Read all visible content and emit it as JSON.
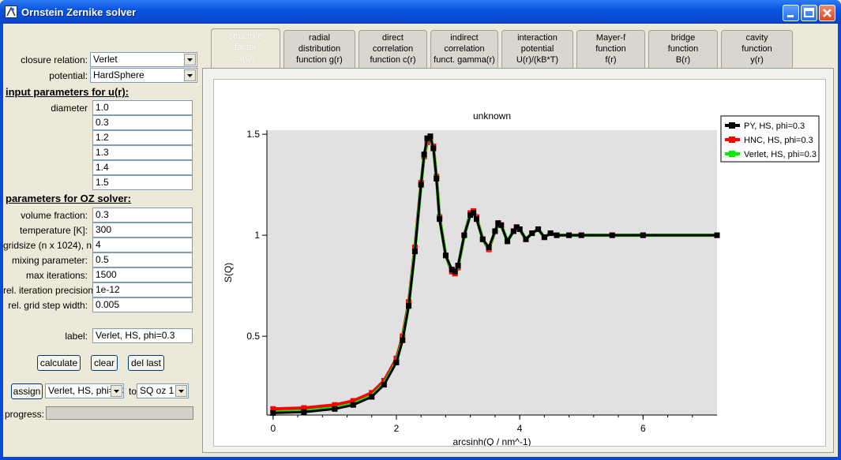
{
  "window": {
    "title": "Ornstein Zernike solver"
  },
  "form": {
    "closure_label": "closure relation:",
    "closure_value": "Verlet",
    "potential_label": "potential:",
    "potential_value": "HardSphere",
    "section_u": "input parameters for u(r):",
    "diameter_label": "diameter",
    "u_params": [
      "1.0",
      "0.3",
      "1.2",
      "1.3",
      "1.4",
      "1.5"
    ],
    "section_oz": "parameters for OZ solver:",
    "oz_params": [
      {
        "label": "volume fraction:",
        "value": "0.3"
      },
      {
        "label": "temperature [K]:",
        "value": "300"
      },
      {
        "label": "gridsize (n x 1024), n:",
        "value": "4"
      },
      {
        "label": "mixing parameter:",
        "value": "0.5"
      },
      {
        "label": "max iterations:",
        "value": "1500"
      },
      {
        "label": "rel. iteration precision:",
        "value": "1e-12"
      },
      {
        "label": "rel. grid step width:",
        "value": "0.005"
      }
    ],
    "label_label": "label:",
    "label_value": "Verlet, HS, phi=0.3",
    "calculate_label": "calculate",
    "clear_label": "clear",
    "del_last_label": "del last",
    "assign_label": "assign",
    "assign_source_value": "Verlet, HS, phi=0.3",
    "to_label": "to",
    "assign_target_value": "SQ oz 1",
    "progress_label": "progress:",
    "progress_value": 0
  },
  "tabs": [
    {
      "lines": [
        "structure",
        "factor",
        "S(Q)"
      ],
      "active": true
    },
    {
      "lines": [
        "radial",
        "distribution",
        "function g(r)"
      ],
      "active": false
    },
    {
      "lines": [
        "direct",
        "correlation",
        "function c(r)"
      ],
      "active": false
    },
    {
      "lines": [
        "indirect",
        "correlation",
        "funct. gamma(r)"
      ],
      "active": false
    },
    {
      "lines": [
        "interaction",
        "potential",
        "U(r)/(kB*T)"
      ],
      "active": false
    },
    {
      "lines": [
        "Mayer-f",
        "function",
        "f(r)"
      ],
      "active": false
    },
    {
      "lines": [
        "bridge",
        "function",
        "B(r)"
      ],
      "active": false
    },
    {
      "lines": [
        "cavity",
        "function",
        "y(r)"
      ],
      "active": false
    }
  ],
  "chart_data": {
    "type": "line",
    "title": "unknown",
    "xlabel": "arcsinh(Q / nm^-1)",
    "ylabel": "S(Q)",
    "xlim": [
      -0.1,
      7.2
    ],
    "ylim": [
      0.11,
      1.52
    ],
    "xticks": [
      "0",
      "2",
      "4",
      "6"
    ],
    "xtick_values": [
      0,
      2,
      4,
      6
    ],
    "yticks": [
      "0.5",
      "1",
      "1.5"
    ],
    "ytick_values": [
      0.5,
      1,
      1.5
    ],
    "grid": false,
    "legend_position": "right-top",
    "series": [
      {
        "name": "PY, HS, phi=0.3",
        "color": "#000000",
        "x": [
          0,
          0.5,
          1.0,
          1.3,
          1.6,
          1.8,
          2.0,
          2.1,
          2.2,
          2.3,
          2.4,
          2.45,
          2.5,
          2.55,
          2.6,
          2.65,
          2.7,
          2.8,
          2.9,
          2.95,
          3.0,
          3.1,
          3.2,
          3.25,
          3.3,
          3.4,
          3.5,
          3.6,
          3.65,
          3.7,
          3.8,
          3.9,
          3.95,
          4.0,
          4.1,
          4.2,
          4.3,
          4.4,
          4.5,
          4.6,
          4.8,
          5.0,
          5.5,
          6.0,
          7.2
        ],
        "y": [
          0.12,
          0.125,
          0.14,
          0.16,
          0.2,
          0.26,
          0.37,
          0.48,
          0.65,
          0.92,
          1.25,
          1.4,
          1.48,
          1.49,
          1.43,
          1.28,
          1.08,
          0.9,
          0.83,
          0.82,
          0.85,
          1.0,
          1.1,
          1.11,
          1.08,
          0.98,
          0.94,
          1.02,
          1.06,
          1.05,
          0.97,
          1.02,
          1.04,
          1.03,
          0.98,
          1.01,
          1.03,
          0.99,
          1.01,
          1.0,
          1.0,
          1.0,
          1.0,
          1.0,
          1.0
        ]
      },
      {
        "name": "HNC, HS, phi=0.3",
        "color": "#ff0000",
        "x": [
          0,
          0.5,
          1.0,
          1.3,
          1.6,
          1.8,
          2.0,
          2.1,
          2.2,
          2.3,
          2.4,
          2.45,
          2.5,
          2.55,
          2.6,
          2.65,
          2.7,
          2.8,
          2.9,
          2.95,
          3.0,
          3.1,
          3.2,
          3.25,
          3.3,
          3.4,
          3.5,
          3.6,
          3.65,
          3.7,
          3.8,
          3.9,
          3.95,
          4.0,
          4.1,
          4.2,
          4.3,
          4.4,
          4.5,
          4.6,
          4.8,
          5.0,
          5.5,
          6.0,
          7.2
        ],
        "y": [
          0.14,
          0.145,
          0.16,
          0.18,
          0.22,
          0.28,
          0.39,
          0.5,
          0.67,
          0.94,
          1.26,
          1.39,
          1.46,
          1.48,
          1.44,
          1.29,
          1.09,
          0.9,
          0.82,
          0.81,
          0.84,
          1.0,
          1.11,
          1.12,
          1.09,
          0.98,
          0.93,
          1.02,
          1.06,
          1.05,
          0.97,
          1.02,
          1.04,
          1.03,
          0.98,
          1.01,
          1.03,
          0.99,
          1.01,
          1.0,
          1.0,
          1.0,
          1.0,
          1.0,
          1.0
        ]
      },
      {
        "name": "Verlet, HS, phi=0.3",
        "color": "#00ee00",
        "x": [
          0,
          0.5,
          1.0,
          1.3,
          1.6,
          1.8,
          2.0,
          2.1,
          2.2,
          2.3,
          2.4,
          2.45,
          2.5,
          2.55,
          2.6,
          2.65,
          2.7,
          2.8,
          2.9,
          2.95,
          3.0,
          3.1,
          3.2,
          3.25,
          3.3,
          3.4,
          3.5,
          3.6,
          3.65,
          3.7,
          3.8,
          3.9,
          3.95,
          4.0,
          4.1,
          4.2,
          4.3,
          4.4,
          4.5,
          4.6,
          4.8,
          5.0,
          5.5,
          6.0,
          7.2
        ],
        "y": [
          0.125,
          0.13,
          0.145,
          0.165,
          0.205,
          0.265,
          0.375,
          0.485,
          0.655,
          0.925,
          1.25,
          1.395,
          1.47,
          1.485,
          1.435,
          1.285,
          1.085,
          0.9,
          0.825,
          0.815,
          0.845,
          1.0,
          1.105,
          1.115,
          1.085,
          0.98,
          0.935,
          1.02,
          1.06,
          1.05,
          0.97,
          1.02,
          1.04,
          1.03,
          0.98,
          1.01,
          1.03,
          0.99,
          1.01,
          1.0,
          1.0,
          1.0,
          1.0,
          1.0,
          1.0
        ]
      }
    ]
  }
}
